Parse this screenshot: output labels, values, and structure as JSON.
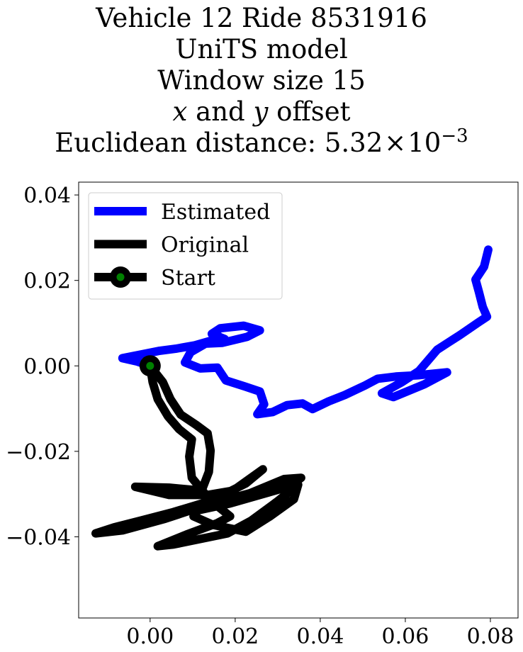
{
  "chart_data": {
    "type": "line",
    "title_lines": [
      "Vehicle 12 Ride 8531916",
      "UniTS model",
      "Window size 15",
      "x and y offset",
      "Euclidean distance: 5.32 × 10⁻³"
    ],
    "title_parts": {
      "line4_var_x": "x",
      "line4_mid": " and ",
      "line4_var_y": "y",
      "line4_end": " offset",
      "line5_prefix": "Euclidean distance: 5.32",
      "line5_times": "×",
      "line5_base": "10",
      "line5_exp": "−3"
    },
    "xlabel": "",
    "ylabel": "",
    "xlim": [
      -0.0168,
      0.0865
    ],
    "ylim": [
      -0.059,
      0.043
    ],
    "x_ticks": [
      {
        "value": 0.0,
        "label": "0.00"
      },
      {
        "value": 0.02,
        "label": "0.02"
      },
      {
        "value": 0.04,
        "label": "0.04"
      },
      {
        "value": 0.06,
        "label": "0.06"
      },
      {
        "value": 0.08,
        "label": "0.08"
      }
    ],
    "y_ticks": [
      {
        "value": 0.04,
        "label": "0.04"
      },
      {
        "value": 0.02,
        "label": "0.02"
      },
      {
        "value": 0.0,
        "label": "0.00"
      },
      {
        "value": -0.02,
        "label": "−0.02"
      },
      {
        "value": -0.04,
        "label": "−0.04"
      }
    ],
    "grid": false,
    "legend": {
      "placement": "top-left",
      "entries": [
        {
          "label": "Estimated",
          "color": "#0000ff",
          "marker": "none"
        },
        {
          "label": "Original",
          "color": "#000000",
          "marker": "none"
        },
        {
          "label": "Start",
          "color": "#000000",
          "marker": "circle",
          "marker_face": "#008000"
        }
      ]
    },
    "series": [
      {
        "name": "Estimated",
        "color": "#0000ff",
        "points": [
          [
            0.0,
            0.0
          ],
          [
            -0.003,
            0.001
          ],
          [
            -0.0065,
            0.0018
          ],
          [
            -0.0025,
            0.0026
          ],
          [
            0.002,
            0.0035
          ],
          [
            0.006,
            0.004
          ],
          [
            0.0105,
            0.0048
          ],
          [
            0.014,
            0.0058
          ],
          [
            0.0175,
            0.0063
          ],
          [
            0.0145,
            0.0075
          ],
          [
            0.0165,
            0.0088
          ],
          [
            0.022,
            0.0094
          ],
          [
            0.0258,
            0.0083
          ],
          [
            0.0228,
            0.0068
          ],
          [
            0.017,
            0.0054
          ],
          [
            0.013,
            0.0052
          ],
          [
            0.0095,
            0.0032
          ],
          [
            0.0082,
            0.0008
          ],
          [
            0.0118,
            -0.0006
          ],
          [
            0.0158,
            -0.0004
          ],
          [
            0.0178,
            -0.0034
          ],
          [
            0.0222,
            -0.0048
          ],
          [
            0.0258,
            -0.006
          ],
          [
            0.0268,
            -0.009
          ],
          [
            0.0252,
            -0.0113
          ],
          [
            0.0288,
            -0.0108
          ],
          [
            0.0322,
            -0.0092
          ],
          [
            0.0358,
            -0.0088
          ],
          [
            0.0382,
            -0.0101
          ],
          [
            0.042,
            -0.0083
          ],
          [
            0.0458,
            -0.0068
          ],
          [
            0.0505,
            -0.0046
          ],
          [
            0.0535,
            -0.003
          ],
          [
            0.0578,
            -0.0025
          ],
          [
            0.063,
            -0.0022
          ],
          [
            0.0698,
            -0.0015
          ],
          [
            0.0645,
            -0.0043
          ],
          [
            0.0572,
            -0.0073
          ],
          [
            0.0545,
            -0.0064
          ],
          [
            0.0592,
            -0.0038
          ],
          [
            0.0632,
            -0.0012
          ],
          [
            0.0675,
            0.0038
          ],
          [
            0.0728,
            0.0072
          ],
          [
            0.0772,
            0.0102
          ],
          [
            0.0792,
            0.0115
          ],
          [
            0.0782,
            0.0138
          ],
          [
            0.0773,
            0.0173
          ],
          [
            0.0765,
            0.0202
          ],
          [
            0.0785,
            0.0232
          ],
          [
            0.0795,
            0.0272
          ]
        ]
      },
      {
        "name": "Original",
        "color": "#000000",
        "points": [
          [
            0.0,
            0.0
          ],
          [
            0.003,
            -0.0038
          ],
          [
            0.0048,
            -0.0078
          ],
          [
            0.0072,
            -0.0114
          ],
          [
            0.0108,
            -0.0138
          ],
          [
            0.0135,
            -0.0158
          ],
          [
            0.0142,
            -0.0198
          ],
          [
            0.0138,
            -0.0248
          ],
          [
            0.0121,
            -0.0292
          ],
          [
            0.0045,
            -0.0285
          ],
          [
            -0.0035,
            -0.0283
          ],
          [
            0.0045,
            -0.0302
          ],
          [
            0.0135,
            -0.0302
          ],
          [
            0.0195,
            -0.0292
          ],
          [
            0.0265,
            -0.0242
          ],
          [
            0.0225,
            -0.0275
          ],
          [
            0.0145,
            -0.0315
          ],
          [
            0.0055,
            -0.0342
          ],
          [
            -0.0022,
            -0.0362
          ],
          [
            -0.0085,
            -0.0378
          ],
          [
            -0.0128,
            -0.0392
          ],
          [
            -0.0065,
            -0.0385
          ],
          [
            0.0035,
            -0.0358
          ],
          [
            0.0135,
            -0.0325
          ],
          [
            0.0235,
            -0.0298
          ],
          [
            0.0315,
            -0.0265
          ],
          [
            0.0355,
            -0.0262
          ],
          [
            0.0328,
            -0.0282
          ],
          [
            0.0258,
            -0.0302
          ],
          [
            0.0188,
            -0.0322
          ],
          [
            0.0112,
            -0.0338
          ],
          [
            0.0102,
            -0.0352
          ],
          [
            0.0148,
            -0.0372
          ],
          [
            0.0225,
            -0.0388
          ],
          [
            0.0282,
            -0.0352
          ],
          [
            0.0338,
            -0.0312
          ],
          [
            0.0348,
            -0.0278
          ],
          [
            0.0298,
            -0.0318
          ],
          [
            0.0238,
            -0.0362
          ],
          [
            0.0182,
            -0.0392
          ],
          [
            0.0118,
            -0.0405
          ],
          [
            0.0055,
            -0.0418
          ],
          [
            0.0018,
            -0.0422
          ],
          [
            0.0085,
            -0.0395
          ],
          [
            0.0158,
            -0.0368
          ],
          [
            0.0188,
            -0.0352
          ],
          [
            0.0142,
            -0.0315
          ],
          [
            0.0098,
            -0.0262
          ],
          [
            0.0092,
            -0.0212
          ],
          [
            0.0098,
            -0.0172
          ],
          [
            0.0068,
            -0.0148
          ],
          [
            0.0042,
            -0.0118
          ],
          [
            0.0018,
            -0.0078
          ],
          [
            0.0006,
            -0.0038
          ],
          [
            0.0,
            0.0
          ]
        ]
      }
    ],
    "start_point": {
      "x": 0.0,
      "y": 0.0,
      "label": "Start",
      "edge_color": "#000000",
      "face_color": "#008000"
    }
  }
}
